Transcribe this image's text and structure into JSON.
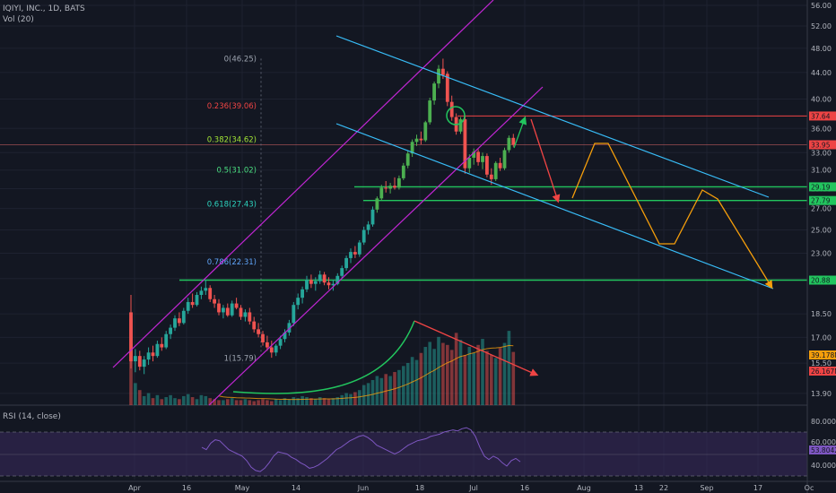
{
  "header": {
    "symbol_line": "IQIYI, INC., 1D, BATS",
    "volume_legend": "Vol (20)",
    "rsi_legend": "RSI (14, close)"
  },
  "colors": {
    "background": "#131722",
    "up": "#26a69a",
    "up_bright": "#4caf50",
    "down": "#ef5350",
    "channel_purple": "#c026d3",
    "trend_cyan": "#38bdf8",
    "level_green": "#22c55e",
    "level_red": "#ef4444",
    "projection_orange": "#f59e0b",
    "rsi_line": "#7e57c2",
    "rsi_band": "#3a2a5e"
  },
  "chart_data": {
    "type": "candlestick",
    "title": "IQIYI, INC., 1D, BATS",
    "scale": "log",
    "y_ticks": [
      "56.00",
      "52.00",
      "48.00",
      "44.00",
      "40.00",
      "36.00",
      "33.00",
      "31.00",
      "29.00",
      "27.00",
      "25.00",
      "23.00",
      "21.00",
      "18.50",
      "17.00",
      "15.50",
      "13.90"
    ],
    "x_ticks": [
      "Apr",
      "16",
      "May",
      "14",
      "Jun",
      "18",
      "Jul",
      "16",
      "Aug",
      "13",
      "22",
      "Sep",
      "17",
      "Oc"
    ],
    "price_tags": [
      {
        "label": "37.64",
        "value": 37.64,
        "color": "#ef4444"
      },
      {
        "label": "33.95",
        "value": 33.95,
        "color": "#ef4444"
      },
      {
        "label": "29.19",
        "value": 29.19,
        "color": "#22c55e"
      },
      {
        "label": "27.79",
        "value": 27.79,
        "color": "#22c55e"
      },
      {
        "label": "20.88",
        "value": 20.88,
        "color": "#22c55e"
      },
      {
        "label": "39.178M",
        "value": 16.0,
        "color": "#f59e0b"
      },
      {
        "label": "26.167M",
        "value": 15.0,
        "color": "#ef4444"
      }
    ],
    "fib_levels": [
      {
        "label": "0(46.25)",
        "value": 46.25,
        "color": "#9ca3af"
      },
      {
        "label": "0.236(39.06)",
        "value": 39.06,
        "color": "#ef4444"
      },
      {
        "label": "0.382(34.62)",
        "value": 34.62,
        "color": "#a3e635"
      },
      {
        "label": "0.5(31.02)",
        "value": 31.02,
        "color": "#4ade80"
      },
      {
        "label": "0.618(27.43)",
        "value": 27.43,
        "color": "#2dd4bf"
      },
      {
        "label": "0.786(22.31)",
        "value": 22.31,
        "color": "#60a5fa"
      },
      {
        "label": "1(15.79)",
        "value": 15.79,
        "color": "#9ca3af"
      }
    ],
    "candles": [
      {
        "o": 18.6,
        "h": 19.8,
        "l": 15.2,
        "c": 15.6
      },
      {
        "o": 15.6,
        "h": 16.3,
        "l": 15.0,
        "c": 15.9
      },
      {
        "o": 15.9,
        "h": 16.2,
        "l": 15.1,
        "c": 15.3
      },
      {
        "o": 15.3,
        "h": 15.9,
        "l": 14.9,
        "c": 15.7
      },
      {
        "o": 15.7,
        "h": 16.4,
        "l": 15.4,
        "c": 16.1
      },
      {
        "o": 16.1,
        "h": 16.5,
        "l": 15.6,
        "c": 15.9
      },
      {
        "o": 15.9,
        "h": 16.8,
        "l": 15.8,
        "c": 16.6
      },
      {
        "o": 16.6,
        "h": 17.0,
        "l": 16.2,
        "c": 16.4
      },
      {
        "o": 16.4,
        "h": 17.4,
        "l": 16.3,
        "c": 17.2
      },
      {
        "o": 17.2,
        "h": 17.8,
        "l": 16.9,
        "c": 17.6
      },
      {
        "o": 17.6,
        "h": 18.4,
        "l": 17.4,
        "c": 18.2
      },
      {
        "o": 18.2,
        "h": 18.6,
        "l": 17.7,
        "c": 17.9
      },
      {
        "o": 17.9,
        "h": 18.9,
        "l": 17.8,
        "c": 18.7
      },
      {
        "o": 18.7,
        "h": 19.6,
        "l": 18.5,
        "c": 19.3
      },
      {
        "o": 19.3,
        "h": 19.9,
        "l": 18.9,
        "c": 19.1
      },
      {
        "o": 19.1,
        "h": 20.0,
        "l": 19.0,
        "c": 19.8
      },
      {
        "o": 19.8,
        "h": 20.4,
        "l": 19.5,
        "c": 20.1
      },
      {
        "o": 20.1,
        "h": 20.9,
        "l": 19.8,
        "c": 20.3
      },
      {
        "o": 20.3,
        "h": 20.5,
        "l": 19.3,
        "c": 19.5
      },
      {
        "o": 19.5,
        "h": 19.8,
        "l": 18.9,
        "c": 19.2
      },
      {
        "o": 19.2,
        "h": 19.5,
        "l": 18.4,
        "c": 18.6
      },
      {
        "o": 18.6,
        "h": 19.1,
        "l": 18.2,
        "c": 18.9
      },
      {
        "o": 18.9,
        "h": 19.2,
        "l": 18.3,
        "c": 18.4
      },
      {
        "o": 18.4,
        "h": 19.4,
        "l": 18.3,
        "c": 19.2
      },
      {
        "o": 19.2,
        "h": 19.6,
        "l": 18.8,
        "c": 18.9
      },
      {
        "o": 18.9,
        "h": 19.1,
        "l": 18.1,
        "c": 18.3
      },
      {
        "o": 18.3,
        "h": 18.8,
        "l": 18.0,
        "c": 18.6
      },
      {
        "o": 18.6,
        "h": 18.9,
        "l": 17.8,
        "c": 18.0
      },
      {
        "o": 18.0,
        "h": 18.3,
        "l": 17.3,
        "c": 17.5
      },
      {
        "o": 17.5,
        "h": 17.9,
        "l": 17.0,
        "c": 17.2
      },
      {
        "o": 17.2,
        "h": 17.4,
        "l": 16.5,
        "c": 16.7
      },
      {
        "o": 16.7,
        "h": 17.1,
        "l": 16.2,
        "c": 16.4
      },
      {
        "o": 16.4,
        "h": 16.8,
        "l": 15.8,
        "c": 16.1
      },
      {
        "o": 16.1,
        "h": 16.6,
        "l": 15.9,
        "c": 16.5
      },
      {
        "o": 16.5,
        "h": 17.1,
        "l": 16.3,
        "c": 16.9
      },
      {
        "o": 16.9,
        "h": 17.5,
        "l": 16.7,
        "c": 17.3
      },
      {
        "o": 17.3,
        "h": 18.1,
        "l": 17.1,
        "c": 17.9
      },
      {
        "o": 17.9,
        "h": 19.3,
        "l": 17.7,
        "c": 19.1
      },
      {
        "o": 19.1,
        "h": 19.9,
        "l": 18.8,
        "c": 19.6
      },
      {
        "o": 19.6,
        "h": 20.4,
        "l": 19.2,
        "c": 20.2
      },
      {
        "o": 20.2,
        "h": 21.2,
        "l": 20.0,
        "c": 20.9
      },
      {
        "o": 20.9,
        "h": 21.3,
        "l": 20.3,
        "c": 20.6
      },
      {
        "o": 20.6,
        "h": 21.1,
        "l": 20.1,
        "c": 20.8
      },
      {
        "o": 20.8,
        "h": 21.6,
        "l": 20.6,
        "c": 21.3
      },
      {
        "o": 21.3,
        "h": 21.5,
        "l": 20.5,
        "c": 20.7
      },
      {
        "o": 20.7,
        "h": 21.1,
        "l": 20.2,
        "c": 20.5
      },
      {
        "o": 20.5,
        "h": 20.9,
        "l": 20.1,
        "c": 20.6
      },
      {
        "o": 20.6,
        "h": 21.4,
        "l": 20.5,
        "c": 21.2
      },
      {
        "o": 21.2,
        "h": 22.0,
        "l": 21.0,
        "c": 21.8
      },
      {
        "o": 21.8,
        "h": 22.8,
        "l": 21.6,
        "c": 22.6
      },
      {
        "o": 22.6,
        "h": 23.4,
        "l": 22.2,
        "c": 23.1
      },
      {
        "o": 23.1,
        "h": 23.6,
        "l": 22.6,
        "c": 22.9
      },
      {
        "o": 22.9,
        "h": 24.1,
        "l": 22.7,
        "c": 23.9
      },
      {
        "o": 23.9,
        "h": 25.3,
        "l": 23.7,
        "c": 25.0
      },
      {
        "o": 25.0,
        "h": 25.8,
        "l": 24.6,
        "c": 25.5
      },
      {
        "o": 25.5,
        "h": 27.2,
        "l": 25.3,
        "c": 26.9
      },
      {
        "o": 26.9,
        "h": 28.2,
        "l": 26.6,
        "c": 28.0
      },
      {
        "o": 28.0,
        "h": 29.4,
        "l": 27.8,
        "c": 29.1
      },
      {
        "o": 29.1,
        "h": 29.8,
        "l": 28.6,
        "c": 29.0
      },
      {
        "o": 29.0,
        "h": 29.6,
        "l": 28.5,
        "c": 29.3
      },
      {
        "o": 29.3,
        "h": 30.2,
        "l": 28.9,
        "c": 29.1
      },
      {
        "o": 29.1,
        "h": 30.4,
        "l": 28.9,
        "c": 30.1
      },
      {
        "o": 30.1,
        "h": 31.8,
        "l": 29.9,
        "c": 31.5
      },
      {
        "o": 31.5,
        "h": 33.2,
        "l": 31.2,
        "c": 32.9
      },
      {
        "o": 32.9,
        "h": 34.6,
        "l": 32.5,
        "c": 34.3
      },
      {
        "o": 34.3,
        "h": 35.2,
        "l": 33.8,
        "c": 34.7
      },
      {
        "o": 34.7,
        "h": 35.6,
        "l": 34.0,
        "c": 34.5
      },
      {
        "o": 34.5,
        "h": 37.0,
        "l": 34.3,
        "c": 36.8
      },
      {
        "o": 36.8,
        "h": 40.2,
        "l": 36.5,
        "c": 39.8
      },
      {
        "o": 39.8,
        "h": 42.6,
        "l": 39.2,
        "c": 42.3
      },
      {
        "o": 42.3,
        "h": 45.2,
        "l": 41.6,
        "c": 44.6
      },
      {
        "o": 44.6,
        "h": 46.25,
        "l": 43.0,
        "c": 43.6
      },
      {
        "o": 43.8,
        "h": 44.2,
        "l": 39.0,
        "c": 39.6
      },
      {
        "o": 39.6,
        "h": 40.5,
        "l": 37.0,
        "c": 37.5
      },
      {
        "o": 37.5,
        "h": 38.0,
        "l": 35.2,
        "c": 35.6
      },
      {
        "o": 35.6,
        "h": 37.5,
        "l": 35.3,
        "c": 37.2
      },
      {
        "o": 37.2,
        "h": 37.64,
        "l": 30.6,
        "c": 31.2
      },
      {
        "o": 31.2,
        "h": 32.8,
        "l": 30.7,
        "c": 32.4
      },
      {
        "o": 32.4,
        "h": 33.5,
        "l": 31.6,
        "c": 33.1
      },
      {
        "o": 33.1,
        "h": 33.4,
        "l": 31.5,
        "c": 31.9
      },
      {
        "o": 31.9,
        "h": 33.0,
        "l": 31.1,
        "c": 32.6
      },
      {
        "o": 32.6,
        "h": 32.9,
        "l": 30.2,
        "c": 30.5
      },
      {
        "o": 30.5,
        "h": 31.2,
        "l": 29.4,
        "c": 30.0
      },
      {
        "o": 30.0,
        "h": 32.0,
        "l": 29.8,
        "c": 31.8
      },
      {
        "o": 31.8,
        "h": 32.4,
        "l": 30.9,
        "c": 31.2
      },
      {
        "o": 31.2,
        "h": 33.6,
        "l": 31.0,
        "c": 33.3
      },
      {
        "o": 33.3,
        "h": 35.1,
        "l": 33.0,
        "c": 34.8
      },
      {
        "o": 34.8,
        "h": 35.3,
        "l": 33.7,
        "c": 33.95
      }
    ],
    "volumes": [
      0.86,
      0.22,
      0.15,
      0.09,
      0.12,
      0.07,
      0.1,
      0.06,
      0.08,
      0.1,
      0.07,
      0.06,
      0.09,
      0.11,
      0.08,
      0.06,
      0.1,
      0.09,
      0.07,
      0.06,
      0.05,
      0.05,
      0.06,
      0.07,
      0.05,
      0.05,
      0.06,
      0.05,
      0.04,
      0.05,
      0.06,
      0.05,
      0.04,
      0.06,
      0.05,
      0.07,
      0.06,
      0.08,
      0.07,
      0.09,
      0.08,
      0.07,
      0.06,
      0.08,
      0.07,
      0.06,
      0.07,
      0.08,
      0.1,
      0.12,
      0.11,
      0.13,
      0.15,
      0.2,
      0.22,
      0.25,
      0.29,
      0.27,
      0.31,
      0.29,
      0.33,
      0.35,
      0.39,
      0.42,
      0.48,
      0.45,
      0.52,
      0.58,
      0.63,
      0.56,
      0.68,
      0.62,
      0.6,
      0.55,
      0.72,
      0.65,
      0.5,
      0.58,
      0.52,
      0.6,
      0.66,
      0.54,
      0.5,
      0.47,
      0.57,
      0.62,
      0.74,
      0.53
    ]
  }
}
